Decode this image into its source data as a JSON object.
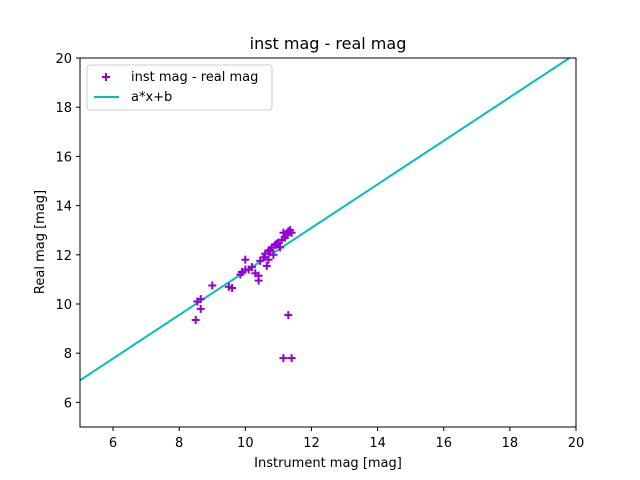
{
  "chart_data": {
    "type": "scatter",
    "title": "inst mag - real mag",
    "xlabel": "Instrument mag [mag]",
    "ylabel": "Real mag [mag]",
    "xlim": [
      5,
      20
    ],
    "ylim": [
      5,
      20
    ],
    "xticks": [
      6,
      8,
      10,
      12,
      14,
      16,
      18,
      20
    ],
    "yticks": [
      6,
      8,
      10,
      12,
      14,
      16,
      18,
      20
    ],
    "grid": false,
    "legend_position": "top-left",
    "series": [
      {
        "name": "inst mag - real mag",
        "kind": "scatter",
        "marker": "plus",
        "color": "#9400d3",
        "points": [
          [
            8.5,
            9.35
          ],
          [
            8.55,
            10.1
          ],
          [
            8.65,
            9.8
          ],
          [
            8.65,
            10.2
          ],
          [
            9.0,
            10.75
          ],
          [
            9.5,
            10.7
          ],
          [
            9.6,
            10.65
          ],
          [
            9.85,
            11.2
          ],
          [
            9.9,
            11.3
          ],
          [
            10.0,
            11.8
          ],
          [
            10.0,
            11.4
          ],
          [
            10.1,
            11.4
          ],
          [
            10.2,
            11.5
          ],
          [
            10.3,
            11.25
          ],
          [
            10.4,
            10.95
          ],
          [
            10.4,
            11.15
          ],
          [
            10.45,
            11.75
          ],
          [
            10.55,
            11.9
          ],
          [
            10.6,
            12.05
          ],
          [
            10.65,
            11.55
          ],
          [
            10.7,
            11.8
          ],
          [
            10.7,
            12.15
          ],
          [
            10.75,
            12.2
          ],
          [
            10.8,
            12.3
          ],
          [
            10.85,
            12.0
          ],
          [
            10.9,
            12.4
          ],
          [
            10.95,
            12.45
          ],
          [
            11.0,
            12.5
          ],
          [
            11.05,
            12.3
          ],
          [
            11.1,
            12.6
          ],
          [
            11.15,
            12.9
          ],
          [
            11.2,
            12.7
          ],
          [
            11.25,
            12.8
          ],
          [
            11.3,
            12.95
          ],
          [
            11.35,
            13.0
          ],
          [
            11.4,
            12.9
          ],
          [
            11.3,
            9.55
          ],
          [
            11.15,
            7.8
          ],
          [
            11.4,
            7.8
          ]
        ]
      },
      {
        "name": "a*x+b",
        "kind": "line",
        "color": "#00bfbf",
        "points": [
          [
            5,
            6.9
          ],
          [
            19.8,
            20.0
          ]
        ]
      }
    ]
  }
}
